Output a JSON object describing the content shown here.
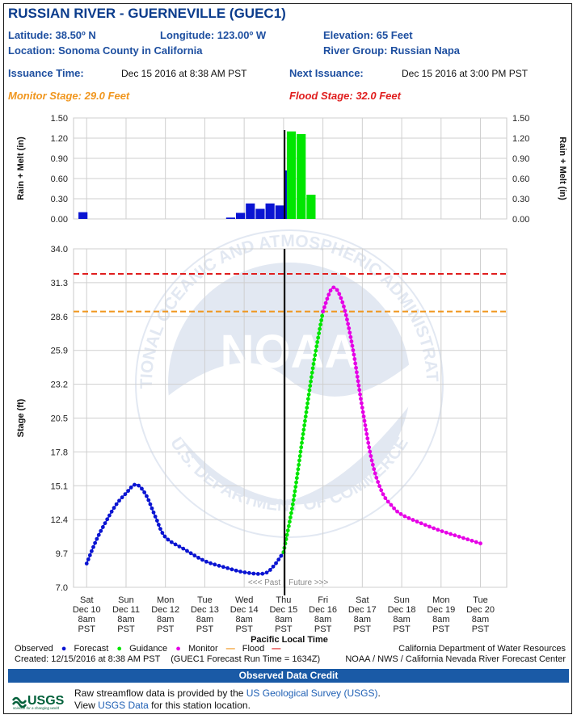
{
  "header": {
    "title": "RUSSIAN RIVER - GUERNEVILLE (GUEC1)",
    "latitude": "Latitude: 38.50º N",
    "longitude": "Longitude: 123.00º W",
    "elevation": "Elevation: 65 Feet",
    "location": "Location: Sonoma County in California",
    "river_group": "River Group: Russian Napa",
    "issuance_label": "Issuance Time:",
    "issuance_value": "Dec 15 2016 at 8:38 AM PST",
    "next_label": "Next Issuance:",
    "next_value": "Dec 15 2016 at 3:00 PM PST",
    "monitor_stage": "Monitor Stage: 29.0 Feet",
    "flood_stage": "Flood Stage: 32.0 Feet"
  },
  "chart_data": [
    {
      "type": "bar",
      "ylabel": "Rain + Melt (in)",
      "ylim": [
        0,
        1.5
      ],
      "yticks": [
        "0.00",
        "0.30",
        "0.60",
        "0.90",
        "1.20",
        "1.50"
      ],
      "series": [
        {
          "name": "Observed",
          "color": "#0a14d2",
          "x": [
            "2016-12-10 03:00",
            "2016-12-13 21:00",
            "2016-12-14 03:00",
            "2016-12-14 09:00",
            "2016-12-14 15:00",
            "2016-12-14 21:00",
            "2016-12-15 03:00",
            "2016-12-15 09:00"
          ],
          "values": [
            0.1,
            0.02,
            0.09,
            0.23,
            0.15,
            0.23,
            0.2,
            0.72
          ]
        },
        {
          "name": "Forecast",
          "color": "#00e600",
          "x": [
            "2016-12-15 10:00",
            "2016-12-15 16:00",
            "2016-12-15 22:00"
          ],
          "values": [
            1.3,
            1.26,
            0.36
          ]
        }
      ]
    },
    {
      "type": "line",
      "ylabel": "Stage (ft)",
      "xlabel": "Pacific Local Time",
      "ylim": [
        7.0,
        34.0
      ],
      "yticks": [
        "7.0",
        "9.7",
        "12.4",
        "15.1",
        "17.8",
        "20.5",
        "23.2",
        "25.9",
        "28.6",
        "31.3",
        "34.0"
      ],
      "xticks": [
        {
          "day": "Sat",
          "date": "Dec 10",
          "time": "8am",
          "tz": "PST"
        },
        {
          "day": "Sun",
          "date": "Dec 11",
          "time": "8am",
          "tz": "PST"
        },
        {
          "day": "Mon",
          "date": "Dec 12",
          "time": "8am",
          "tz": "PST"
        },
        {
          "day": "Tue",
          "date": "Dec 13",
          "time": "8am",
          "tz": "PST"
        },
        {
          "day": "Wed",
          "date": "Dec 14",
          "time": "8am",
          "tz": "PST"
        },
        {
          "day": "Thu",
          "date": "Dec 15",
          "time": "8am",
          "tz": "PST"
        },
        {
          "day": "Fri",
          "date": "Dec 16",
          "time": "8am",
          "tz": "PST"
        },
        {
          "day": "Sat",
          "date": "Dec 17",
          "time": "8am",
          "tz": "PST"
        },
        {
          "day": "Sun",
          "date": "Dec 18",
          "time": "8am",
          "tz": "PST"
        },
        {
          "day": "Mon",
          "date": "Dec 19",
          "time": "8am",
          "tz": "PST"
        },
        {
          "day": "Tue",
          "date": "Dec 20",
          "time": "8am",
          "tz": "PST"
        }
      ],
      "past_label": "<<< Past",
      "future_label": "Future >>>",
      "monitor_stage": 29.0,
      "flood_stage": 32.0,
      "monitor_color": "#f0961e",
      "flood_color": "#e01e1e",
      "series": [
        {
          "name": "Observed",
          "color": "#0a14d2",
          "x": [
            "2016-12-10 08:00",
            "2016-12-10 14:00",
            "2016-12-10 20:00",
            "2016-12-11 02:00",
            "2016-12-11 08:00",
            "2016-12-11 14:00",
            "2016-12-11 20:00",
            "2016-12-12 02:00",
            "2016-12-12 08:00",
            "2016-12-12 20:00",
            "2016-12-13 08:00",
            "2016-12-13 20:00",
            "2016-12-14 08:00",
            "2016-12-14 20:00",
            "2016-12-15 02:00",
            "2016-12-15 08:00"
          ],
          "values": [
            8.9,
            10.8,
            12.3,
            13.6,
            14.5,
            15.2,
            14.4,
            12.6,
            11.0,
            10.0,
            9.1,
            8.6,
            8.2,
            8.1,
            8.7,
            9.8
          ]
        },
        {
          "name": "Guidance",
          "color": "#00e600",
          "x": [
            "2016-12-15 08:00",
            "2016-12-15 14:00",
            "2016-12-15 20:00",
            "2016-12-16 02:00",
            "2016-12-16 08:00"
          ],
          "values": [
            9.8,
            13.9,
            19.3,
            24.6,
            29.0
          ]
        },
        {
          "name": "Monitor",
          "color": "#e600e6",
          "x": [
            "2016-12-16 08:00",
            "2016-12-16 14:00",
            "2016-12-16 20:00",
            "2016-12-17 02:00",
            "2016-12-17 08:00",
            "2016-12-17 14:00",
            "2016-12-17 20:00",
            "2016-12-18 02:00",
            "2016-12-18 08:00",
            "2016-12-18 20:00",
            "2016-12-19 08:00",
            "2016-12-19 20:00",
            "2016-12-20 08:00"
          ],
          "values": [
            29.0,
            30.9,
            29.7,
            26.2,
            21.3,
            17.0,
            14.6,
            13.5,
            12.8,
            12.1,
            11.5,
            11.0,
            10.5
          ]
        }
      ]
    }
  ],
  "legend": {
    "observed": "Observed",
    "forecast": "Forecast",
    "guidance": "Guidance",
    "monitor": "Monitor",
    "flood": "Flood",
    "created": "Created: 12/15/2016 at 8:38 AM PST",
    "run_time": "(GUEC1 Forecast Run Time = 1634Z)",
    "agency1": "California Department of Water Resources",
    "agency2": "NOAA / NWS / California Nevada River Forecast Center"
  },
  "credit": {
    "bar_title": "Observed Data Credit",
    "line1_prefix": "Raw streamflow data is provided by the ",
    "line1_link": "US Geological Survey (USGS)",
    "line1_suffix": ".",
    "line2_prefix": "View ",
    "line2_link": "USGS Data",
    "line2_suffix": " for this station location.",
    "logo_text": "USGS",
    "logo_tagline": "science for a changing world"
  },
  "watermark": {
    "center_text": "NOAA",
    "ring_top": "NATIONAL OCEANIC AND ATMOSPHERIC ADMINISTRATION",
    "ring_bottom": "U.S. DEPARTMENT OF COMMERCE"
  }
}
